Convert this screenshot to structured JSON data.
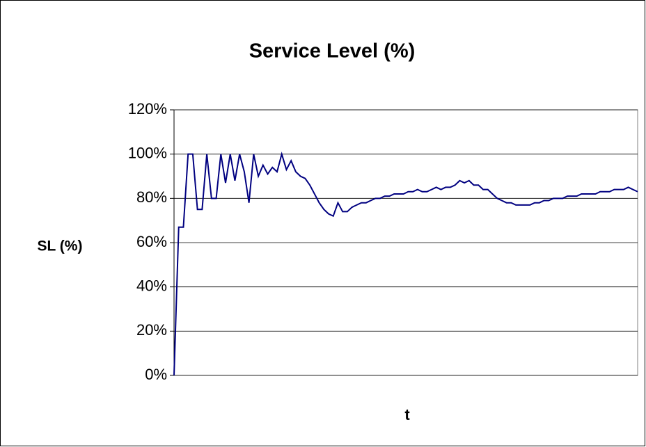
{
  "chart_data": {
    "type": "line",
    "title": "Service Level (%)",
    "y_label": "SL (%)",
    "x_label": "t",
    "categories": [
      null,
      null,
      null,
      null,
      null,
      null,
      null,
      null,
      null,
      null,
      null,
      null,
      null,
      null,
      null,
      null,
      null,
      null,
      null,
      null,
      null,
      null,
      null,
      null,
      null,
      null,
      null,
      null,
      null,
      null,
      null,
      null,
      null,
      null,
      null,
      null,
      null,
      null,
      null,
      null,
      null,
      null,
      null,
      null,
      null,
      null,
      null,
      null,
      null,
      null,
      null,
      null,
      null,
      null,
      null,
      null,
      null,
      null,
      null,
      null,
      null,
      null,
      null,
      null,
      null,
      null,
      null,
      null,
      null,
      null,
      null,
      null,
      null,
      null,
      null,
      null,
      null,
      null,
      null,
      null,
      null,
      null,
      null,
      null,
      null,
      null,
      null,
      null,
      null,
      null,
      null,
      null,
      null,
      null,
      null,
      null,
      null,
      null,
      null,
      null
    ],
    "series": [
      {
        "name": "SL",
        "color": "#000080",
        "values": [
          0,
          67,
          67,
          100,
          100,
          75,
          75,
          100,
          80,
          80,
          100,
          87,
          100,
          88,
          100,
          92,
          78,
          100,
          90,
          95,
          91,
          94,
          92,
          100,
          93,
          97,
          92,
          90,
          89,
          86,
          82,
          78,
          75,
          73,
          72,
          78,
          74,
          74,
          76,
          77,
          78,
          78,
          79,
          80,
          80,
          81,
          81,
          82,
          82,
          82,
          83,
          83,
          84,
          83,
          83,
          84,
          85,
          84,
          85,
          85,
          86,
          88,
          87,
          88,
          86,
          86,
          84,
          84,
          82,
          80,
          79,
          78,
          78,
          77,
          77,
          77,
          77,
          78,
          78,
          79,
          79,
          80,
          80,
          80,
          81,
          81,
          81,
          82,
          82,
          82,
          82,
          83,
          83,
          83,
          84,
          84,
          84,
          85,
          84,
          83
        ]
      }
    ],
    "ylim": [
      0,
      120
    ],
    "yticks": [
      {
        "value": 0,
        "label": "0%"
      },
      {
        "value": 20,
        "label": "20%"
      },
      {
        "value": 40,
        "label": "40%"
      },
      {
        "value": 60,
        "label": "60%"
      },
      {
        "value": 80,
        "label": "80%"
      },
      {
        "value": 100,
        "label": "100%"
      },
      {
        "value": 120,
        "label": "120%"
      }
    ],
    "grid": true
  }
}
